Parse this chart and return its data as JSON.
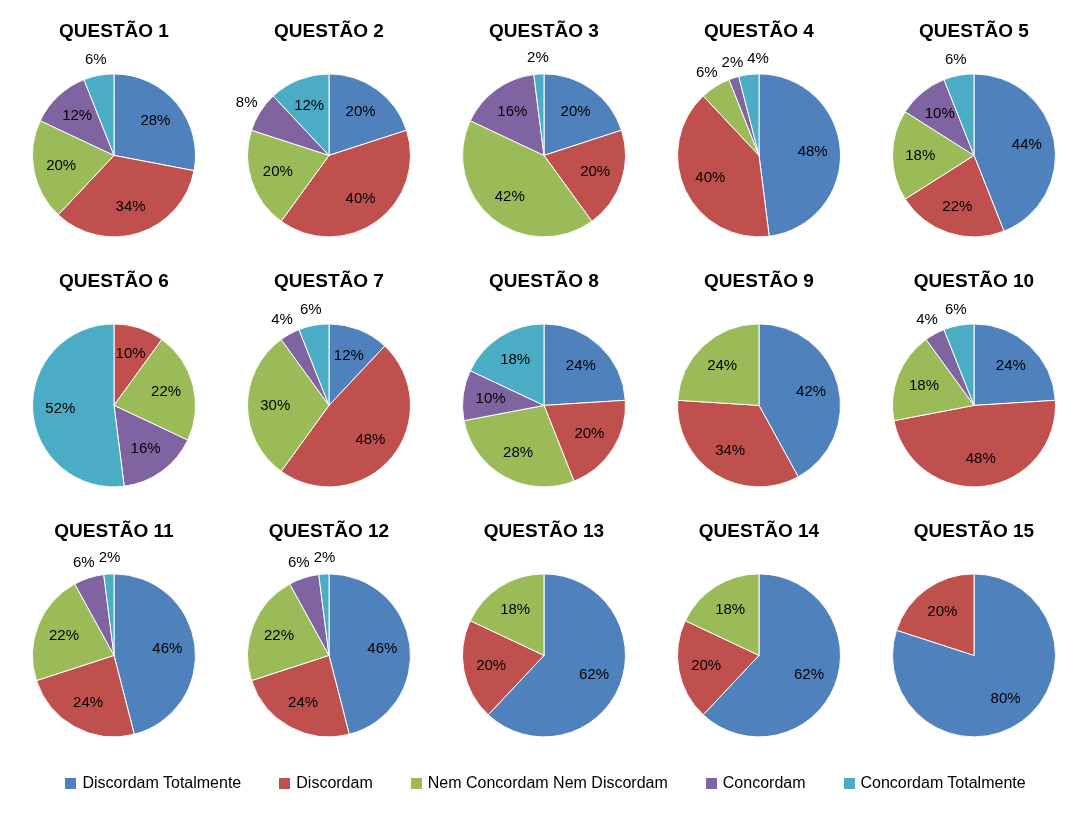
{
  "chart_data": [
    {
      "type": "pie",
      "title": "QUESTÃO 1",
      "categories": [
        "Discordam Totalmente",
        "Discordam",
        "Nem Concordam Nem Discordam",
        "Concordam",
        "Concordam Totalmente"
      ],
      "values": [
        28,
        34,
        20,
        12,
        6
      ],
      "colors": [
        "#4f81bd",
        "#c0504d",
        "#9bbb59",
        "#8064a2",
        "#4bacc6"
      ],
      "value_labels": [
        "28%",
        "34%",
        "20%",
        "12%",
        "6%"
      ],
      "legend": "bottom"
    },
    {
      "type": "pie",
      "title": "QUESTÃO 2",
      "categories": [
        null,
        null,
        null,
        null,
        null
      ],
      "values": [
        20,
        40,
        20,
        8,
        12
      ],
      "colors": [
        "#4f81bd",
        "#c0504d",
        "#9bbb59",
        "#8064a2",
        "#4bacc6"
      ],
      "value_labels": [
        "20%",
        "40%",
        "20%",
        "8%",
        "12%"
      ]
    },
    {
      "type": "pie",
      "title": "QUESTÃO 3",
      "categories": [
        null,
        null,
        null,
        null,
        null
      ],
      "values": [
        20,
        20,
        42,
        16,
        2
      ],
      "colors": [
        "#4f81bd",
        "#c0504d",
        "#9bbb59",
        "#8064a2",
        "#4bacc6"
      ],
      "value_labels": [
        "20%",
        "20%",
        "42%",
        "16%",
        "2%"
      ]
    },
    {
      "type": "pie",
      "title": "QUESTÃO 4",
      "categories": [
        null,
        null,
        null,
        null,
        null
      ],
      "values": [
        48,
        40,
        6,
        2,
        4
      ],
      "colors": [
        "#4f81bd",
        "#c0504d",
        "#9bbb59",
        "#8064a2",
        "#4bacc6"
      ],
      "value_labels": [
        "48%",
        "40%",
        "6%",
        "2%",
        "4%"
      ]
    },
    {
      "type": "pie",
      "title": "QUESTÃO 5",
      "categories": [
        null,
        null,
        null,
        null,
        null
      ],
      "values": [
        44,
        22,
        18,
        10,
        6
      ],
      "colors": [
        "#4f81bd",
        "#c0504d",
        "#9bbb59",
        "#8064a2",
        "#4bacc6"
      ],
      "value_labels": [
        "44%",
        "22%",
        "18%",
        "10%",
        "6%"
      ]
    },
    {
      "type": "pie",
      "title": "QUESTÃO 6",
      "categories": [
        null,
        null,
        null,
        null,
        null
      ],
      "values": [
        0,
        10,
        22,
        16,
        52
      ],
      "colors": [
        "#4f81bd",
        "#c0504d",
        "#9bbb59",
        "#8064a2",
        "#4bacc6"
      ],
      "value_labels": [
        null,
        "10%",
        "22%",
        "16%",
        "52%"
      ]
    },
    {
      "type": "pie",
      "title": "QUESTÃO 7",
      "categories": [
        null,
        null,
        null,
        null,
        null
      ],
      "values": [
        12,
        48,
        30,
        4,
        6
      ],
      "colors": [
        "#4f81bd",
        "#c0504d",
        "#9bbb59",
        "#8064a2",
        "#4bacc6"
      ],
      "value_labels": [
        "12%",
        "48%",
        "30%",
        "4%",
        "6%"
      ]
    },
    {
      "type": "pie",
      "title": "QUESTÃO 8",
      "categories": [
        null,
        null,
        null,
        null,
        null
      ],
      "values": [
        24,
        20,
        28,
        10,
        18
      ],
      "colors": [
        "#4f81bd",
        "#c0504d",
        "#9bbb59",
        "#8064a2",
        "#4bacc6"
      ],
      "value_labels": [
        "24%",
        "20%",
        "28%",
        "10%",
        "18%"
      ]
    },
    {
      "type": "pie",
      "title": "QUESTÃO 9",
      "categories": [
        null,
        null,
        null,
        null,
        null
      ],
      "values": [
        42,
        34,
        24,
        0,
        0
      ],
      "colors": [
        "#4f81bd",
        "#c0504d",
        "#9bbb59",
        "#8064a2",
        "#4bacc6"
      ],
      "value_labels": [
        "42%",
        "34%",
        "24%",
        null,
        null
      ]
    },
    {
      "type": "pie",
      "title": "QUESTÃO 10",
      "categories": [
        null,
        null,
        null,
        null,
        null
      ],
      "values": [
        24,
        48,
        18,
        4,
        6
      ],
      "colors": [
        "#4f81bd",
        "#c0504d",
        "#9bbb59",
        "#8064a2",
        "#4bacc6"
      ],
      "value_labels": [
        "24%",
        "48%",
        "18%",
        "4%",
        "6%"
      ]
    },
    {
      "type": "pie",
      "title": "QUESTÃO 11",
      "categories": [
        null,
        null,
        null,
        null,
        null
      ],
      "values": [
        46,
        24,
        22,
        6,
        2
      ],
      "colors": [
        "#4f81bd",
        "#c0504d",
        "#9bbb59",
        "#8064a2",
        "#4bacc6"
      ],
      "value_labels": [
        "46%",
        "24%",
        "22%",
        "6%",
        "2%"
      ]
    },
    {
      "type": "pie",
      "title": "QUESTÃO 12",
      "categories": [
        null,
        null,
        null,
        null,
        null
      ],
      "values": [
        46,
        24,
        22,
        6,
        2
      ],
      "colors": [
        "#4f81bd",
        "#c0504d",
        "#9bbb59",
        "#8064a2",
        "#4bacc6"
      ],
      "value_labels": [
        "46%",
        "24%",
        "22%",
        "6%",
        "2%"
      ]
    },
    {
      "type": "pie",
      "title": "QUESTÃO 13",
      "categories": [
        null,
        null,
        null,
        null,
        null
      ],
      "values": [
        62,
        20,
        18,
        0,
        0
      ],
      "colors": [
        "#4f81bd",
        "#c0504d",
        "#9bbb59",
        "#8064a2",
        "#4bacc6"
      ],
      "value_labels": [
        "62%",
        "20%",
        "18%",
        null,
        null
      ]
    },
    {
      "type": "pie",
      "title": "QUESTÃO 14",
      "categories": [
        null,
        null,
        null,
        null,
        null
      ],
      "values": [
        62,
        20,
        18,
        0,
        0
      ],
      "colors": [
        "#4f81bd",
        "#c0504d",
        "#9bbb59",
        "#8064a2",
        "#4bacc6"
      ],
      "value_labels": [
        "62%",
        "20%",
        "18%",
        null,
        null
      ]
    },
    {
      "type": "pie",
      "title": "QUESTÃO 15",
      "categories": [
        null,
        null,
        null,
        null,
        null
      ],
      "values": [
        80,
        20,
        0,
        0,
        0
      ],
      "colors": [
        "#4f81bd",
        "#c0504d",
        "#9bbb59",
        "#8064a2",
        "#4bacc6"
      ],
      "value_labels": [
        "80%",
        "20%",
        null,
        null,
        null
      ]
    }
  ]
}
